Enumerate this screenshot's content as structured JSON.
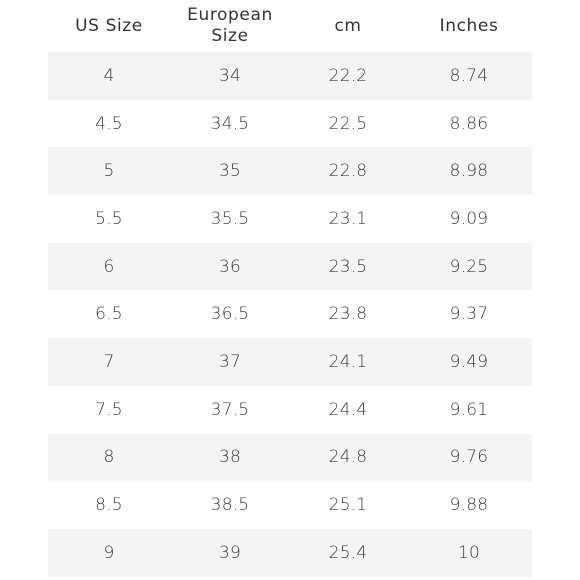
{
  "table": {
    "headers": [
      "US Size",
      "European\nSize",
      "cm",
      "Inches"
    ],
    "rows": [
      [
        "4",
        "34",
        "22.2",
        "8.74"
      ],
      [
        "4.5",
        "34.5",
        "22.5",
        "8.86"
      ],
      [
        "5",
        "35",
        "22.8",
        "8.98"
      ],
      [
        "5.5",
        "35.5",
        "23.1",
        "9.09"
      ],
      [
        "6",
        "36",
        "23.5",
        "9.25"
      ],
      [
        "6.5",
        "36.5",
        "23.8",
        "9.37"
      ],
      [
        "7",
        "37",
        "24.1",
        "9.49"
      ],
      [
        "7.5",
        "37.5",
        "24.4",
        "9.61"
      ],
      [
        "8",
        "38",
        "24.8",
        "9.76"
      ],
      [
        "8.5",
        "38.5",
        "25.1",
        "9.88"
      ],
      [
        "9",
        "39",
        "25.4",
        "10"
      ]
    ],
    "stripe_color": "#f4f4f4"
  }
}
